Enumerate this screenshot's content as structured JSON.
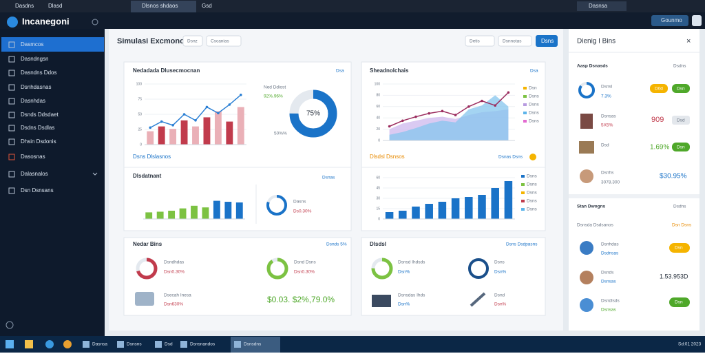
{
  "browser": {
    "tabs": [
      "Dasdns",
      "Dlasd",
      "Dlsnos shdaos",
      "Gsd"
    ],
    "profile": "Dasnsa",
    "action": "Gounmo"
  },
  "sidebar": {
    "brand": "Incanegoni",
    "items": [
      "Dasmcos",
      "Dasndngsn",
      "Dasndns Ddos",
      "Dsnhdasnas",
      "Dasnhdas",
      "Dsnds Ddsdaet",
      "Dsdns Dsdlas",
      "Dhsin Dsdonis",
      "Dasosnas",
      "Dalasnalos",
      "Dsn Dsnsans"
    ]
  },
  "header": {
    "title": "Simulasi Excmonot",
    "chips": [
      "Dsnz",
      "Cscanias"
    ],
    "filters": [
      "Detis",
      "Dsnnotas"
    ],
    "primary": "Dsns"
  },
  "sales": {
    "title": "Nedadada Dlusecmocnan",
    "link": "Dsa",
    "footer": "Dsns Dlslasnos",
    "chart": {
      "type": "bar",
      "ylim": [
        0,
        100
      ],
      "yticks": [
        0,
        25,
        50,
        75,
        100
      ],
      "values": [
        22,
        30,
        26,
        40,
        30,
        45,
        55,
        38,
        62
      ],
      "colors": [
        "#eab0b7",
        "#c13b4c"
      ],
      "line": {
        "color": "#2a7fd4",
        "values": [
          28,
          38,
          32,
          50,
          40,
          62,
          52,
          66,
          82
        ]
      }
    },
    "donut": {
      "type": "ring",
      "value": 75,
      "value_label": "75%",
      "color": "#1a73c8",
      "title": "Ned Ddiost",
      "stat": "92%.96%",
      "note": "50%%"
    }
  },
  "status": {
    "title": "Dlsdatnant",
    "link": "Dsnas",
    "chart": {
      "type": "bar",
      "ylim": [
        0,
        100
      ],
      "values": [
        20,
        22,
        25,
        32,
        40,
        35,
        55,
        52,
        50
      ],
      "colors": [
        "#7cc242",
        "#7cc242",
        "#7cc242",
        "#7cc242",
        "#7cc242",
        "#7cc242",
        "#1a73c8",
        "#1a73c8",
        "#1a73c8"
      ]
    },
    "ring": {
      "type": "ring",
      "value": 80,
      "color": "#1a73c8",
      "title": "Dasns",
      "stat": "Ds0.30%"
    }
  },
  "trend": {
    "title": "Sheadnolchais",
    "link": "Dsa",
    "footer": "Dlsdsl Dsnsos",
    "action": "Dsnas Dsns",
    "chart": {
      "type": "area",
      "ylim": [
        0,
        100
      ],
      "yticks": [
        0,
        20,
        40,
        60,
        80,
        100
      ],
      "series": [
        {
          "color": "#cdb8ee",
          "values": [
            20,
            30,
            35,
            40,
            42,
            38,
            45,
            50,
            52,
            55
          ]
        },
        {
          "color": "#86c6ee",
          "values": [
            10,
            15,
            22,
            30,
            35,
            32,
            55,
            62,
            80,
            60
          ]
        }
      ],
      "line": {
        "color": "#9b2c5e",
        "values": [
          25,
          35,
          42,
          48,
          52,
          45,
          60,
          70,
          62,
          85
        ]
      }
    },
    "legend": [
      {
        "name": "Dsn",
        "color": "#f5b400"
      },
      {
        "name": "Dsns",
        "color": "#7cc242"
      },
      {
        "name": "Dsns",
        "color": "#b89be0"
      },
      {
        "name": "Dsns",
        "color": "#5cb4ea"
      },
      {
        "name": "Dsns",
        "color": "#e36ad0"
      }
    ]
  },
  "volume": {
    "chart": {
      "type": "bar",
      "ylim": [
        0,
        60
      ],
      "yticks": [
        0,
        15,
        30,
        45,
        60
      ],
      "values": [
        10,
        12,
        18,
        22,
        25,
        30,
        32,
        35,
        45,
        55
      ],
      "colors": [
        "#1a73c8"
      ]
    },
    "legend": [
      {
        "name": "Dsns",
        "color": "#1a73c8"
      },
      {
        "name": "Dsns",
        "color": "#7cc242"
      },
      {
        "name": "Dsns",
        "color": "#f5b400"
      },
      {
        "name": "Dsns",
        "color": "#c13b4c"
      },
      {
        "name": "Dsns",
        "color": "#5cb4ea"
      }
    ]
  },
  "bins": {
    "title": "Nedar Bins",
    "link": "Dsnds 5%",
    "items": [
      {
        "ring": {
          "type": "ring",
          "value": 70,
          "color": "#c13b4c"
        },
        "name": "Dsndhdas",
        "stat": "Dsn0.30%"
      },
      {
        "ring": {
          "type": "ring",
          "value": 90,
          "color": "#7cc242"
        },
        "name": "Dsnd Dsns",
        "stat": "Dsn0.30%"
      },
      {
        "name": "Dsecah Inesa",
        "stat": "Dsn630%"
      }
    ],
    "total": "$0.03. $2%,79.0%"
  },
  "detail": {
    "title": "Dlsdsl",
    "link": "Dsns Dsdpasns",
    "items": [
      {
        "ring": {
          "type": "ring",
          "value": 75,
          "color": "#7cc242"
        },
        "name": "Dsnsd Ihdsds",
        "stat": "Dsn%"
      },
      {
        "name": "Dsns",
        "stat": "Dsn%"
      },
      {
        "name": "Dsnsdas Ihds",
        "stat": "Dsn%"
      },
      {
        "name": "Dsnd",
        "stat": "Dsn%"
      }
    ]
  },
  "panel": {
    "title": "Dienig I Bins",
    "section1": "Aasp Dsnasds",
    "section1_link": "Dsdns",
    "items1": [
      {
        "name": "Dsnsl",
        "stat": "7.3%",
        "ring": {
          "type": "ring",
          "value": 85,
          "color": "#1a73c8"
        },
        "pills": [
          "D0d",
          "Dsn"
        ]
      },
      {
        "name": "Dsnsas",
        "stat": "5X5%",
        "value": "909",
        "pills": [
          "Dsd"
        ]
      },
      {
        "name": "Dsd",
        "value": "1.69%",
        "pills": [
          "Dsn"
        ]
      },
      {
        "name": "Dsnhs",
        "stat": "3078.300",
        "value": "$30.95%"
      }
    ],
    "section2": "Stan Dwogns",
    "section2_link": "Dsdns",
    "sub": "Dsnsda Dsdsanos",
    "sub_link": "Dsn Dsns",
    "items2": [
      {
        "name": "Dsnhdas",
        "stat": "Dsdnsas",
        "pills": [
          "Dsn"
        ]
      },
      {
        "name": "Dsnds",
        "stat": "Dsnsas",
        "value": "1.53.953D"
      },
      {
        "name": "Dsndlsds",
        "stat": "Dsnsas",
        "pills": [
          "Dsn"
        ]
      }
    ]
  },
  "taskbar": {
    "items": [
      "Dasnsa",
      "Dsnsns",
      "Dsd",
      "Dsnsnandos",
      "Dsnsdns"
    ],
    "clock": "Sd:01 2023"
  }
}
